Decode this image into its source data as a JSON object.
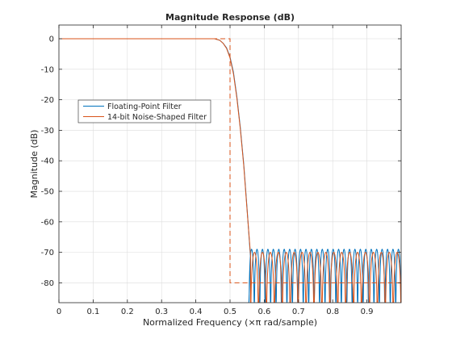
{
  "chart_data": {
    "type": "line",
    "title": "Magnitude Response (dB)",
    "xlabel": "Normalized Frequency (×π rad/sample)",
    "ylabel": "Magnitude (dB)",
    "xlim": [
      0,
      1
    ],
    "ylim": [
      -86.5,
      4.5
    ],
    "x_ticks": [
      0,
      0.1,
      0.2,
      0.3,
      0.4,
      0.5,
      0.6,
      0.7,
      0.8,
      0.9
    ],
    "x_tick_labels": [
      "0",
      "0.1",
      "0.2",
      "0.3",
      "0.4",
      "0.5",
      "0.6",
      "0.7",
      "0.8",
      "0.9"
    ],
    "y_ticks": [
      0,
      -10,
      -20,
      -30,
      -40,
      -50,
      -60,
      -70,
      -80
    ],
    "y_tick_labels": [
      "0",
      "-10",
      "-20",
      "-30",
      "-40",
      "-50",
      "-60",
      "-70",
      "-80"
    ],
    "grid": true,
    "legend_position": "upper-left",
    "series": [
      {
        "name": "Floating-Point Filter",
        "color": "#0072BD",
        "passband": {
          "x": [
            0,
            0.455
          ],
          "y": 0
        },
        "transition": {
          "x": [
            0.455,
            0.47,
            0.48,
            0.49,
            0.5,
            0.51,
            0.52,
            0.53,
            0.54,
            0.55,
            0.56
          ],
          "y": [
            0,
            -0.5,
            -1.5,
            -3,
            -6,
            -11,
            -19,
            -29,
            -41,
            -56,
            -72
          ]
        },
        "stopband": {
          "x_start": 0.555,
          "x_end": 1.0,
          "ripple_top": -69,
          "ripple_bottom": -86.5,
          "lobes": 28
        }
      },
      {
        "name": "14-bit Noise-Shaped Filter",
        "color": "#D95319",
        "passband": {
          "x": [
            0,
            0.455
          ],
          "y": 0
        },
        "transition": {
          "x": [
            0.455,
            0.47,
            0.48,
            0.49,
            0.5,
            0.51,
            0.52,
            0.53,
            0.54,
            0.55,
            0.56
          ],
          "y": [
            0,
            -0.5,
            -1.5,
            -3.2,
            -6.3,
            -11.5,
            -19.5,
            -29.5,
            -41.5,
            -56.5,
            -71
          ]
        },
        "stopband": {
          "x_start": 0.56,
          "x_end": 1.0,
          "ripple_top": -70,
          "ripple_bottom": -86.5,
          "lobes": 19
        }
      },
      {
        "name": "",
        "color": "#D95319",
        "style": "dashed",
        "x": [
          0,
          0.5,
          0.5,
          1.0
        ],
        "y": [
          0,
          0,
          -80,
          -80
        ]
      }
    ]
  }
}
